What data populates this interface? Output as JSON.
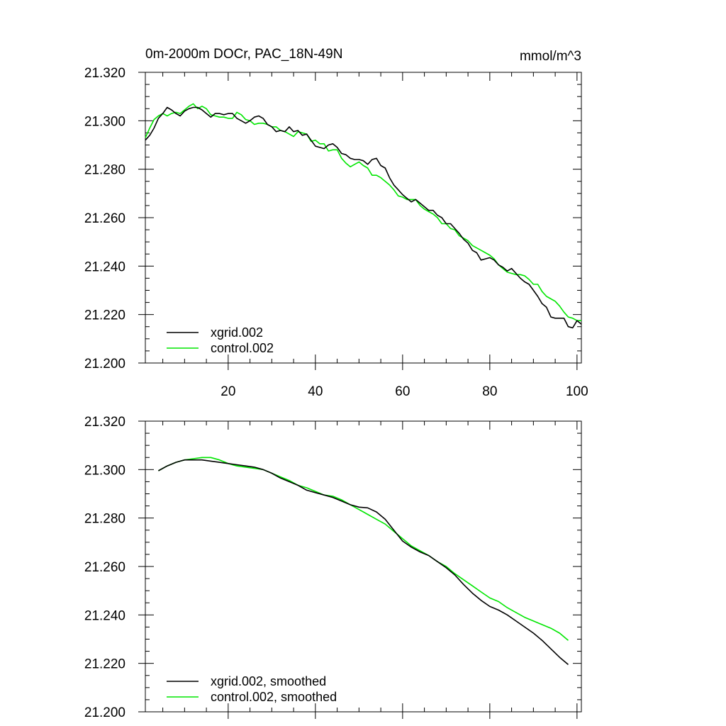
{
  "chart_data": [
    {
      "type": "line",
      "title": "0m-2000m DOCr, PAC_18N-49N",
      "units": "mmol/m^3",
      "xlabel": "",
      "ylabel": "",
      "xlim": [
        1,
        101
      ],
      "ylim": [
        21.2,
        21.32
      ],
      "xticks": [
        20,
        40,
        60,
        80,
        100
      ],
      "xtick_labels": [
        "20",
        "40",
        "60",
        "80",
        "100"
      ],
      "yticks": [
        21.2,
        21.22,
        21.24,
        21.26,
        21.28,
        21.3,
        21.32
      ],
      "ytick_labels": [
        "21.200",
        "21.220",
        "21.240",
        "21.260",
        "21.280",
        "21.300",
        "21.320"
      ],
      "legend_position": "bottom-left",
      "series": [
        {
          "name": "xgrid.002",
          "color": "#000000",
          "x": [
            1,
            2,
            3,
            4,
            5,
            6,
            7,
            8,
            9,
            10,
            11,
            12,
            13,
            14,
            15,
            16,
            17,
            18,
            19,
            20,
            21,
            22,
            23,
            24,
            25,
            26,
            27,
            28,
            29,
            30,
            31,
            32,
            33,
            34,
            35,
            36,
            37,
            38,
            39,
            40,
            41,
            42,
            43,
            44,
            45,
            46,
            47,
            48,
            49,
            50,
            51,
            52,
            53,
            54,
            55,
            56,
            57,
            58,
            59,
            60,
            61,
            62,
            63,
            64,
            65,
            66,
            67,
            68,
            69,
            70,
            71,
            72,
            73,
            74,
            75,
            76,
            77,
            78,
            79,
            80,
            81,
            82,
            83,
            84,
            85,
            86,
            87,
            88,
            89,
            90,
            91,
            92,
            93,
            94,
            95,
            96,
            97,
            98,
            99,
            100,
            101
          ],
          "values": [
            21.292,
            21.294,
            21.297,
            21.301,
            21.303,
            21.3055,
            21.3045,
            21.303,
            21.302,
            21.304,
            21.305,
            21.3055,
            21.3055,
            21.3045,
            21.303,
            21.3015,
            21.303,
            21.303,
            21.3025,
            21.303,
            21.303,
            21.301,
            21.3,
            21.299,
            21.3,
            21.3015,
            21.302,
            21.301,
            21.2985,
            21.2975,
            21.2955,
            21.296,
            21.2955,
            21.2975,
            21.2955,
            21.296,
            21.294,
            21.2945,
            21.292,
            21.2895,
            21.289,
            21.2885,
            21.29,
            21.2905,
            21.289,
            21.2865,
            21.286,
            21.2845,
            21.284,
            21.284,
            21.2835,
            21.282,
            21.284,
            21.2845,
            21.2815,
            21.2805,
            21.2765,
            21.2735,
            21.2715,
            21.2695,
            21.268,
            21.2665,
            21.2675,
            21.266,
            21.2645,
            21.263,
            21.263,
            21.261,
            21.26,
            21.2575,
            21.2575,
            21.2555,
            21.2535,
            21.251,
            21.2495,
            21.2465,
            21.2455,
            21.2425,
            21.243,
            21.2435,
            21.2425,
            21.2405,
            21.2395,
            21.238,
            21.239,
            21.237,
            21.235,
            21.2335,
            21.2325,
            21.23,
            21.2275,
            21.2245,
            21.223,
            21.219,
            21.2185,
            21.2185,
            21.2185,
            21.215,
            21.2145,
            21.2175,
            21.216
          ]
        },
        {
          "name": "control.002",
          "color": "#00e600",
          "x": [
            1,
            2,
            3,
            4,
            5,
            6,
            7,
            8,
            9,
            10,
            11,
            12,
            13,
            14,
            15,
            16,
            17,
            18,
            19,
            20,
            21,
            22,
            23,
            24,
            25,
            26,
            27,
            28,
            29,
            30,
            31,
            32,
            33,
            34,
            35,
            36,
            37,
            38,
            39,
            40,
            41,
            42,
            43,
            44,
            45,
            46,
            47,
            48,
            49,
            50,
            51,
            52,
            53,
            54,
            55,
            56,
            57,
            58,
            59,
            60,
            61,
            62,
            63,
            64,
            65,
            66,
            67,
            68,
            69,
            70,
            71,
            72,
            73,
            74,
            75,
            76,
            77,
            78,
            79,
            80,
            81,
            82,
            83,
            84,
            85,
            86,
            87,
            88,
            89,
            90,
            91,
            92,
            93,
            94,
            95,
            96,
            97,
            98,
            99,
            100,
            101
          ],
          "values": [
            21.293,
            21.297,
            21.3005,
            21.302,
            21.303,
            21.302,
            21.303,
            21.3035,
            21.303,
            21.3045,
            21.306,
            21.307,
            21.305,
            21.306,
            21.305,
            21.3025,
            21.302,
            21.3015,
            21.3015,
            21.301,
            21.301,
            21.3035,
            21.3025,
            21.3005,
            21.3,
            21.2985,
            21.299,
            21.299,
            21.2985,
            21.2975,
            21.2975,
            21.296,
            21.2955,
            21.2945,
            21.2935,
            21.2955,
            21.295,
            21.2945,
            21.2915,
            21.292,
            21.2905,
            21.2905,
            21.2875,
            21.288,
            21.288,
            21.2845,
            21.2825,
            21.281,
            21.282,
            21.283,
            21.2815,
            21.2805,
            21.2775,
            21.2775,
            21.2765,
            21.275,
            21.2735,
            21.2715,
            21.269,
            21.2685,
            21.2675,
            21.2675,
            21.2675,
            21.265,
            21.2635,
            21.2625,
            21.2615,
            21.26,
            21.2575,
            21.2575,
            21.2555,
            21.255,
            21.2525,
            21.2515,
            21.2505,
            21.2485,
            21.2475,
            21.2465,
            21.2455,
            21.2445,
            21.243,
            21.2405,
            21.239,
            21.2375,
            21.237,
            21.2365,
            21.2365,
            21.236,
            21.2345,
            21.2325,
            21.2325,
            21.2295,
            21.2275,
            21.2265,
            21.2255,
            21.2235,
            21.221,
            21.219,
            21.2185,
            21.2175,
            21.2175
          ]
        }
      ]
    },
    {
      "type": "line",
      "title": "",
      "xlabel": "",
      "ylabel": "",
      "xlim": [
        1,
        101
      ],
      "ylim": [
        21.2,
        21.32
      ],
      "xticks": [
        20,
        40,
        60,
        80,
        100
      ],
      "xtick_labels": [],
      "yticks": [
        21.2,
        21.22,
        21.24,
        21.26,
        21.28,
        21.3,
        21.32
      ],
      "ytick_labels": [
        "21.200",
        "21.220",
        "21.240",
        "21.260",
        "21.280",
        "21.300",
        "21.320"
      ],
      "legend_position": "bottom-left",
      "series": [
        {
          "name": "xgrid.002, smoothed",
          "color": "#000000",
          "x": [
            4,
            6,
            8,
            10,
            12,
            14,
            16,
            18,
            20,
            22,
            24,
            26,
            28,
            30,
            32,
            34,
            36,
            38,
            40,
            42,
            44,
            46,
            48,
            50,
            52,
            54,
            56,
            58,
            60,
            62,
            64,
            66,
            68,
            70,
            72,
            74,
            76,
            78,
            80,
            82,
            84,
            86,
            88,
            90,
            92,
            94,
            96,
            98
          ],
          "values": [
            21.2995,
            21.3015,
            21.303,
            21.304,
            21.304,
            21.304,
            21.3035,
            21.303,
            21.3025,
            21.302,
            21.3015,
            21.301,
            21.3,
            21.2985,
            21.2965,
            21.295,
            21.2935,
            21.2915,
            21.2905,
            21.2895,
            21.2885,
            21.287,
            21.2855,
            21.2845,
            21.2842,
            21.2825,
            21.2795,
            21.275,
            21.2705,
            21.268,
            21.266,
            21.2645,
            21.262,
            21.2595,
            21.2565,
            21.2525,
            21.249,
            21.246,
            21.2435,
            21.242,
            21.24,
            21.2375,
            21.235,
            21.2325,
            21.2295,
            21.226,
            21.2225,
            21.2195
          ]
        },
        {
          "name": "control.002, smoothed",
          "color": "#00e600",
          "x": [
            4,
            6,
            8,
            10,
            12,
            14,
            16,
            18,
            20,
            22,
            24,
            26,
            28,
            30,
            32,
            34,
            36,
            38,
            40,
            42,
            44,
            46,
            48,
            50,
            52,
            54,
            56,
            58,
            60,
            62,
            64,
            66,
            68,
            70,
            72,
            74,
            76,
            78,
            80,
            82,
            84,
            86,
            88,
            90,
            92,
            94,
            96,
            98
          ],
          "values": [
            21.2995,
            21.3015,
            21.303,
            21.304,
            21.3045,
            21.305,
            21.305,
            21.304,
            21.3025,
            21.3015,
            21.301,
            21.3005,
            21.3,
            21.2985,
            21.297,
            21.2955,
            21.2935,
            21.2925,
            21.291,
            21.2895,
            21.289,
            21.2875,
            21.2855,
            21.2835,
            21.2815,
            21.2795,
            21.2775,
            21.2745,
            21.2715,
            21.2685,
            21.2665,
            21.2645,
            21.262,
            21.26,
            21.257,
            21.2545,
            21.252,
            21.2495,
            21.247,
            21.2455,
            21.243,
            21.241,
            21.239,
            21.2375,
            21.236,
            21.2345,
            21.2325,
            21.2295
          ]
        }
      ]
    }
  ]
}
